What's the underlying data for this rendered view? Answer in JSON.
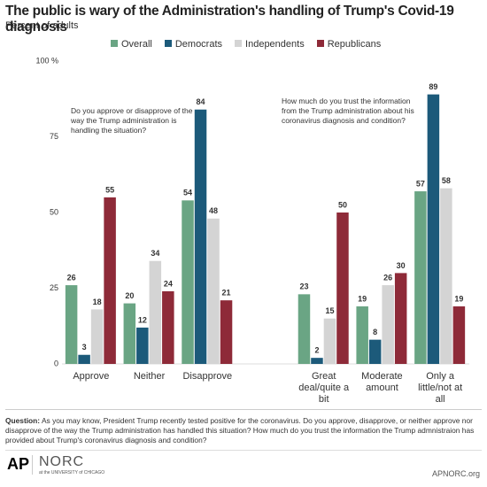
{
  "chart_data": {
    "type": "bar",
    "title": "The public is wary of the Administration's handling of Trump's Covid-19 diagnosis",
    "subtitle": "Percent of adults",
    "categories": [
      "Approve",
      "Neither",
      "Disapprove",
      null,
      "Great deal/quite a bit",
      "Moderate amount",
      "Only a little/not at all"
    ],
    "series": [
      {
        "name": "Overall",
        "color": "#6aa584",
        "values": [
          26,
          20,
          54,
          null,
          23,
          19,
          57
        ]
      },
      {
        "name": "Democrats",
        "color": "#1c5a7a",
        "values": [
          3,
          12,
          84,
          null,
          2,
          8,
          89
        ]
      },
      {
        "name": "Independents",
        "color": "#d4d4d4",
        "values": [
          18,
          34,
          48,
          null,
          15,
          26,
          58
        ]
      },
      {
        "name": "Republicans",
        "color": "#8e2a38",
        "values": [
          55,
          24,
          21,
          null,
          50,
          30,
          19
        ]
      }
    ],
    "ylim": [
      0,
      100
    ],
    "yticks": [
      0,
      25,
      50,
      75,
      {
        "value": 100,
        "label": "100 %"
      }
    ],
    "annotations": [
      "Do you approve or disapprove of the way the Trump administration is handling the situation?",
      "How much do you trust the information from the Trump administration about his coronavirus diagnosis and condition?"
    ]
  },
  "footer": {
    "question_label": "Question:",
    "question": "As you may know, President Trump recently tested positive for the coronavirus. Do you approve, disapprove, or neither approve nor disapprove of the way the Trump administration has handled this situation? How much do you trust the information the Trump admnistraion has provided about Trump's coronavirus diagnosis and condition?",
    "logo_ap": "AP",
    "logo_norc": "NORC",
    "logo_norc_sub": "at the UNIVERSITY of CHICAGO",
    "site": "APNORC.org"
  }
}
